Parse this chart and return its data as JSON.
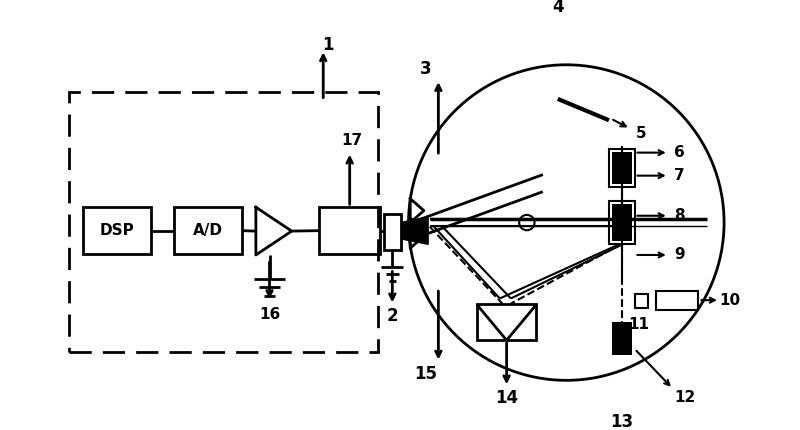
{
  "bg_color": "#ffffff",
  "fig_width": 8.0,
  "fig_height": 4.3,
  "dpi": 100,
  "fs": 11
}
